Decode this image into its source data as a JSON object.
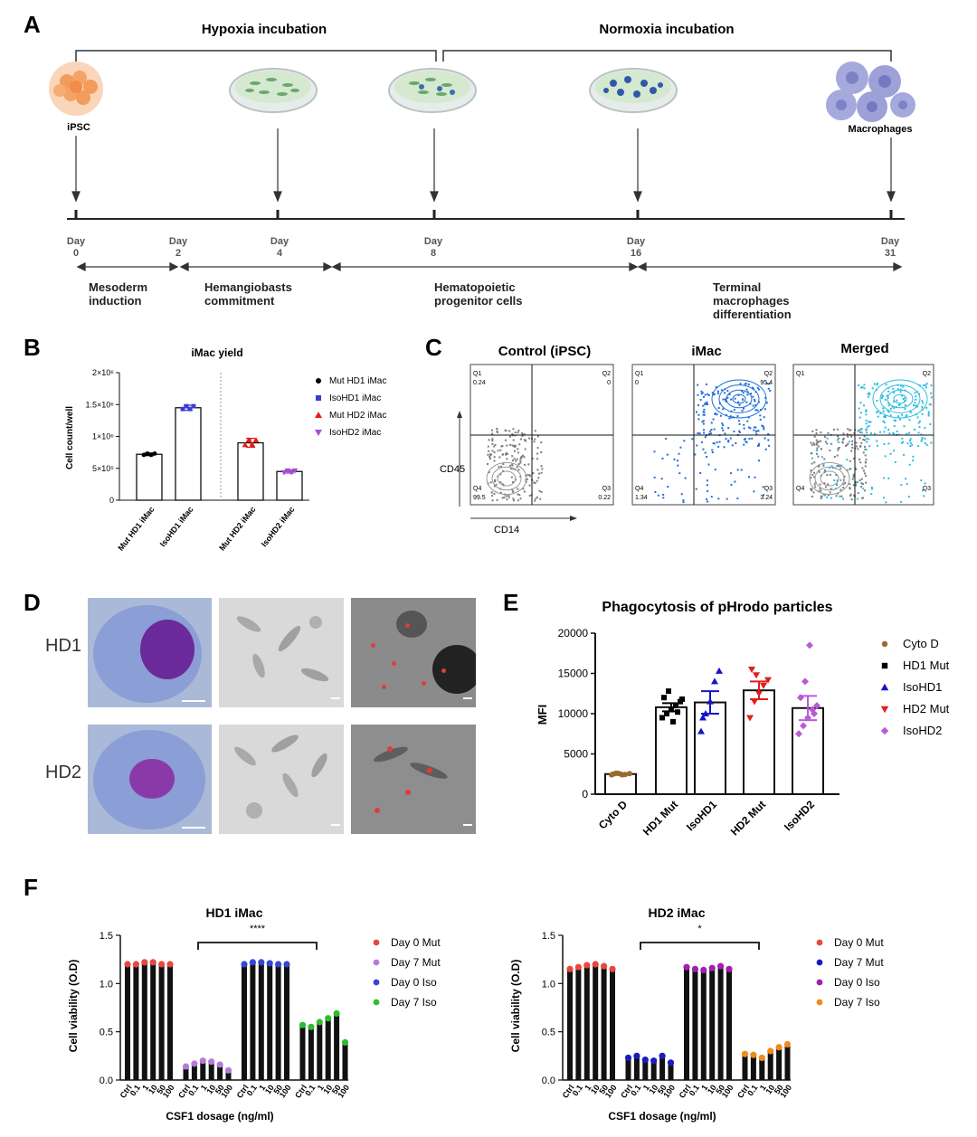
{
  "panel_labels": [
    "A",
    "B",
    "C",
    "D",
    "E",
    "F"
  ],
  "panelA": {
    "phase1": "Hypoxia incubation",
    "phase2": "Normoxia incubation",
    "ipsc": "iPSC",
    "macrophages": "Macrophages",
    "days": [
      {
        "word": "Day",
        "num": "0"
      },
      {
        "word": "Day",
        "num": "2"
      },
      {
        "word": "Day",
        "num": "4"
      },
      {
        "word": "Day",
        "num": "8"
      },
      {
        "word": "Day",
        "num": "16"
      },
      {
        "word": "Day",
        "num": "31"
      }
    ],
    "stages": [
      [
        "Mesoderm",
        "induction"
      ],
      [
        "Hemangiobasts",
        "commitment"
      ],
      [
        "Hematopoietic",
        "progenitor cells"
      ],
      [
        "Terminal",
        "macrophages",
        "differentiation"
      ]
    ]
  },
  "panelC": {
    "titles": [
      "Control (iPSC)",
      "iMac",
      "Merged"
    ],
    "ylabel": "CD45",
    "xlabel": "CD14",
    "quadrants": [
      "Q1",
      "Q2",
      "Q3",
      "Q4"
    ],
    "values": [
      {
        "q1": "0.24",
        "q2": "0",
        "q3": "0.22",
        "q4": "99.5"
      },
      {
        "q1": "0",
        "q2": "95.4",
        "q3": "3.24",
        "q4": "1.34"
      }
    ]
  },
  "panelD": {
    "rows": [
      "HD1",
      "HD2"
    ]
  },
  "colors": {
    "black": "#000000",
    "blue": "#3b3bd6",
    "red": "#e11d1d",
    "purple": "#a44fd6",
    "brown": "#9a6a2c",
    "magenta": "#b85ad9",
    "darkblue": "#1414c8",
    "f_red": "#e8463e",
    "f_lilac": "#b77ad9",
    "f_blue": "#3545d6",
    "f_green": "#2dbd2d",
    "f_navy": "#1b1bc2",
    "f_purple": "#a31fb0",
    "f_orange": "#f28a1b",
    "flow_gray": "#7d7d7d",
    "flow_blue": "#1e6ed9",
    "flow_cyan": "#2dbde0"
  },
  "chart_data": [
    {
      "id": "B",
      "type": "bar",
      "title": "iMac yield",
      "ylabel": "Cell count/well",
      "ylim": [
        0,
        2000000
      ],
      "yticks": [
        "0",
        "5×10⁵",
        "1×10⁶",
        "1.5×10⁶",
        "2×10⁶"
      ],
      "yticks_values": [
        0,
        500000,
        1000000,
        1500000,
        2000000
      ],
      "categories": [
        "Mut HD1 iMac",
        "IsoHD1 iMac",
        "Mut HD2 iMac",
        "IsoHD2 iMac"
      ],
      "values": [
        720000,
        1450000,
        900000,
        450000
      ],
      "errors": [
        20000,
        40000,
        70000,
        25000
      ],
      "legend": [
        "Mut HD1 iMac",
        "IsoHD1 iMac",
        "Mut HD2 iMac",
        "IsoHD2 iMac"
      ]
    },
    {
      "id": "E",
      "type": "bar",
      "title": "Phagocytosis of pHrodo particles",
      "ylabel": "MFI",
      "ylim": [
        0,
        20000
      ],
      "yticks": [
        "0",
        "5000",
        "10000",
        "15000",
        "20000"
      ],
      "yticks_values": [
        0,
        5000,
        10000,
        15000,
        20000
      ],
      "categories": [
        "Cyto D",
        "HD1 Mut",
        "IsoHD1",
        "HD2 Mut",
        "IsoHD2"
      ],
      "values": [
        2500,
        10800,
        11400,
        12900,
        10700
      ],
      "errors": [
        100,
        500,
        1400,
        1100,
        1500
      ],
      "points": [
        [
          2400,
          2600,
          2500,
          2450,
          2550,
          2500,
          2600,
          2400
        ],
        [
          9500,
          10000,
          10500,
          11000,
          11500,
          12000,
          12800,
          9000,
          10200,
          11800
        ],
        [
          7800,
          10000,
          11500,
          14000,
          15300,
          9500
        ],
        [
          9500,
          11500,
          12500,
          13500,
          14200,
          15500,
          14800
        ],
        [
          7500,
          8500,
          9500,
          10500,
          11000,
          12000,
          14000,
          18500,
          10000
        ]
      ],
      "legend": [
        "Cyto D",
        "HD1 Mut",
        "IsoHD1",
        "HD2 Mut",
        "IsoHD2"
      ]
    },
    {
      "id": "F1",
      "type": "bar",
      "title": "HD1 iMac",
      "ylabel": "Cell viability (O.D)",
      "xlabel": "CSF1 dosage (ng/ml)",
      "ylim": [
        0,
        1.5
      ],
      "yticks": [
        "0.0",
        "0.5",
        "1.0",
        "1.5"
      ],
      "yticks_values": [
        0,
        0.5,
        1.0,
        1.5
      ],
      "categories": [
        "Ctrl",
        "0.1",
        "1",
        "10",
        "50",
        "100"
      ],
      "significance": "****",
      "series": [
        {
          "name": "Day 0 Mut",
          "values": [
            1.2,
            1.2,
            1.22,
            1.22,
            1.2,
            1.2
          ]
        },
        {
          "name": "Day 7 Mut",
          "values": [
            0.14,
            0.17,
            0.2,
            0.19,
            0.16,
            0.1
          ]
        },
        {
          "name": "Day 0 Iso",
          "values": [
            1.2,
            1.22,
            1.22,
            1.21,
            1.2,
            1.2
          ]
        },
        {
          "name": "Day 7 Iso",
          "values": [
            0.57,
            0.55,
            0.6,
            0.64,
            0.69,
            0.39
          ]
        }
      ]
    },
    {
      "id": "F2",
      "type": "bar",
      "title": "HD2 iMac",
      "ylabel": "Cell viability (O.D)",
      "xlabel": "CSF1 dosage (ng/ml)",
      "ylim": [
        0,
        1.5
      ],
      "yticks": [
        "0.0",
        "0.5",
        "1.0",
        "1.5"
      ],
      "yticks_values": [
        0,
        0.5,
        1.0,
        1.5
      ],
      "categories": [
        "Ctrl",
        "0.1",
        "1",
        "10",
        "50",
        "100"
      ],
      "significance": "*",
      "series": [
        {
          "name": "Day 0 Mut",
          "values": [
            1.15,
            1.17,
            1.19,
            1.2,
            1.18,
            1.15
          ]
        },
        {
          "name": "Day 7 Mut",
          "values": [
            0.23,
            0.25,
            0.21,
            0.2,
            0.25,
            0.18
          ]
        },
        {
          "name": "Day 0 Iso",
          "values": [
            1.17,
            1.15,
            1.14,
            1.16,
            1.18,
            1.15
          ]
        },
        {
          "name": "Day 7 Iso",
          "values": [
            0.27,
            0.26,
            0.23,
            0.3,
            0.34,
            0.37
          ]
        }
      ]
    }
  ]
}
